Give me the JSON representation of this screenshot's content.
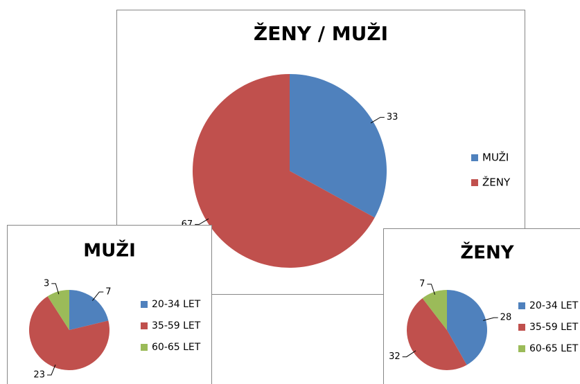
{
  "chart_data": [
    {
      "type": "pie",
      "title": "ŽENY / MUŽI",
      "categories": [
        "MUŽI",
        "ŽENY"
      ],
      "values": [
        33,
        67
      ],
      "colors": [
        "#4f81bd",
        "#c0504d"
      ],
      "legend": "right"
    },
    {
      "type": "pie",
      "title": "MUŽI",
      "categories": [
        "20-34 LET",
        "35-59 LET",
        "60-65 LET"
      ],
      "values": [
        7,
        23,
        3
      ],
      "colors": [
        "#4f81bd",
        "#c0504d",
        "#9bbb59"
      ],
      "legend": "right"
    },
    {
      "type": "pie",
      "title": "ŽENY",
      "categories": [
        "20-34 LET",
        "35-59 LET",
        "60-65 LET"
      ],
      "values": [
        28,
        32,
        7
      ],
      "colors": [
        "#4f81bd",
        "#c0504d",
        "#9bbb59"
      ],
      "legend": "right"
    }
  ]
}
